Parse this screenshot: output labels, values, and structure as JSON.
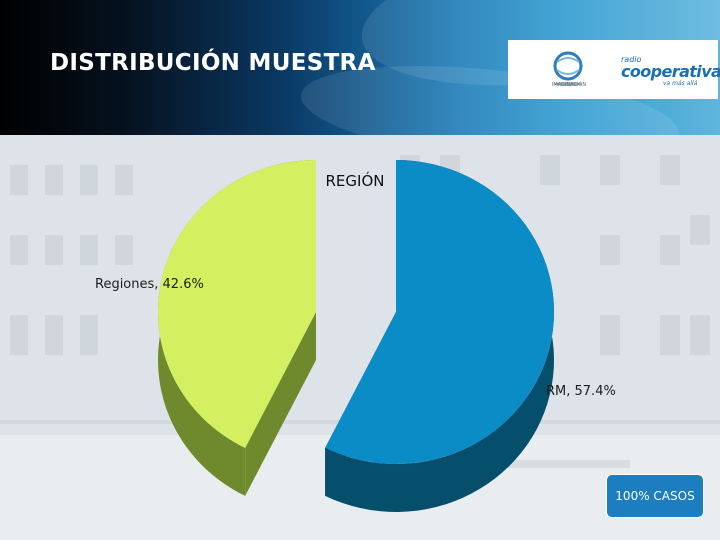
{
  "slide": {
    "title": "DISTRIBUCIÓN MUESTRA",
    "badge": "100% CASOS"
  },
  "logos": {
    "left_caption": "IMAGINACIÓN",
    "right_small": "radio",
    "right_main": "cooperativa",
    "right_tag": "va más allá"
  },
  "chart_data": {
    "type": "pie",
    "title": "REGIÓN",
    "style": "3d-exploded",
    "slices": [
      {
        "name": "RM",
        "value": 57.4,
        "label": "RM, 57.4%",
        "color": "#0b8cc7",
        "side_color": "#064f6c"
      },
      {
        "name": "Regiones",
        "value": 42.6,
        "label": "Regiones, 42.6%",
        "color": "#d4f060",
        "side_color": "#6e8a2c"
      }
    ],
    "legend": "none"
  }
}
